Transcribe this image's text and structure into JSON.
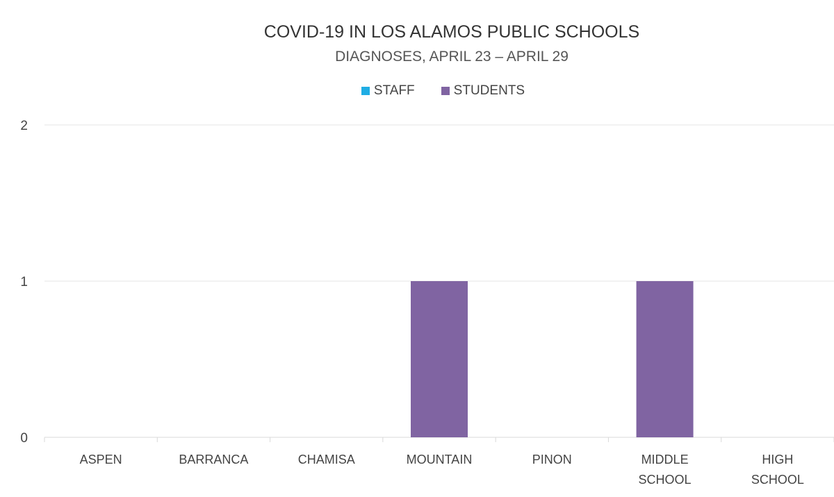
{
  "chart_data": {
    "type": "bar",
    "title": "COVID-19 IN LOS ALAMOS PUBLIC SCHOOLS",
    "subtitle": "DIAGNOSES, APRIL 23 – APRIL 29",
    "categories": [
      [
        "ASPEN"
      ],
      [
        "BARRANCA"
      ],
      [
        "CHAMISA"
      ],
      [
        "MOUNTAIN"
      ],
      [
        "PINON"
      ],
      [
        "MIDDLE",
        "SCHOOL"
      ],
      [
        "HIGH",
        "SCHOOL"
      ]
    ],
    "series": [
      {
        "name": "STAFF",
        "color": "#1FADE4",
        "values": [
          0,
          0,
          0,
          0,
          0,
          0,
          0
        ]
      },
      {
        "name": "STUDENTS",
        "color": "#8064A2",
        "values": [
          0,
          0,
          0,
          1,
          0,
          1,
          0
        ]
      }
    ],
    "yticks": [
      "0",
      "1",
      "2"
    ],
    "ylim": [
      0,
      2
    ],
    "xlabel": "",
    "ylabel": "",
    "grid": true,
    "legend_position": "top-center"
  }
}
